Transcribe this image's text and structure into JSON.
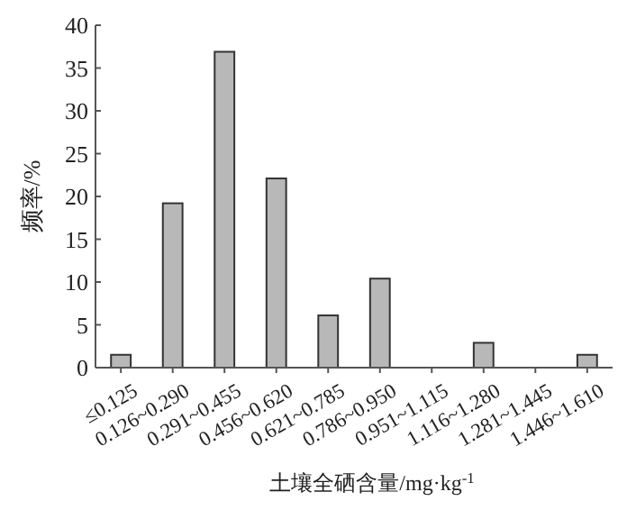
{
  "chart_data": {
    "type": "bar",
    "xlabel": "土壤全硒含量/mg·kg$^{-1}$",
    "ylabel": "频率/%",
    "categories": [
      "≤0.125",
      "0.126~0.290",
      "0.291~0.455",
      "0.456~0.620",
      "0.621~0.785",
      "0.786~0.950",
      "0.951~1.115",
      "1.116~1.280",
      "1.281~1.445",
      "1.446~1.610"
    ],
    "values": [
      1.5,
      19.2,
      36.9,
      22.1,
      6.1,
      10.4,
      0,
      2.9,
      0,
      1.5
    ],
    "color": "#b8b8b8",
    "ylim": [
      0,
      40
    ],
    "yticks": [
      0,
      5,
      10,
      15,
      20,
      25,
      30,
      35,
      40
    ],
    "grid": false
  }
}
